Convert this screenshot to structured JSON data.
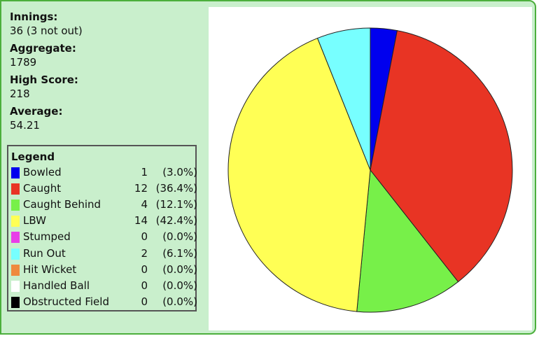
{
  "stats": [
    {
      "label": "Innings:",
      "value": "36 (3 not out)"
    },
    {
      "label": "Aggregate:",
      "value": "1789"
    },
    {
      "label": "High Score:",
      "value": "218"
    },
    {
      "label": "Average:",
      "value": "54.21"
    }
  ],
  "legend": {
    "title": "Legend",
    "rows": [
      {
        "label": "Bowled",
        "count": "1",
        "pct": "(3.0%)",
        "color": "#0000ee"
      },
      {
        "label": "Caught",
        "count": "12",
        "pct": "(36.4%)",
        "color": "#e83424"
      },
      {
        "label": "Caught Behind",
        "count": "4",
        "pct": "(12.1%)",
        "color": "#77f049"
      },
      {
        "label": "LBW",
        "count": "14",
        "pct": "(42.4%)",
        "color": "#ffff55"
      },
      {
        "label": "Stumped",
        "count": "0",
        "pct": "(0.0%)",
        "color": "#e83ee8"
      },
      {
        "label": "Run Out",
        "count": "2",
        "pct": "(6.1%)",
        "color": "#77ffff"
      },
      {
        "label": "Hit Wicket",
        "count": "0",
        "pct": "(0.0%)",
        "color": "#ef8a3c"
      },
      {
        "label": "Handled Ball",
        "count": "0",
        "pct": "(0.0%)",
        "color": "#ffffff"
      },
      {
        "label": "Obstructed Field",
        "count": "0",
        "pct": "(0.0%)",
        "color": "#000000"
      }
    ]
  },
  "chart_data": {
    "type": "pie",
    "categories": [
      "Bowled",
      "Caught",
      "Caught Behind",
      "LBW",
      "Stumped",
      "Run Out",
      "Hit Wicket",
      "Handled Ball",
      "Obstructed Field"
    ],
    "values": [
      1,
      12,
      4,
      14,
      0,
      2,
      0,
      0,
      0
    ],
    "colors": [
      "#0000ee",
      "#e83424",
      "#77f049",
      "#ffff55",
      "#e83ee8",
      "#77ffff",
      "#ef8a3c",
      "#ffffff",
      "#000000"
    ],
    "start": "12 o'clock",
    "direction": "clockwise",
    "legend_position": "left"
  }
}
